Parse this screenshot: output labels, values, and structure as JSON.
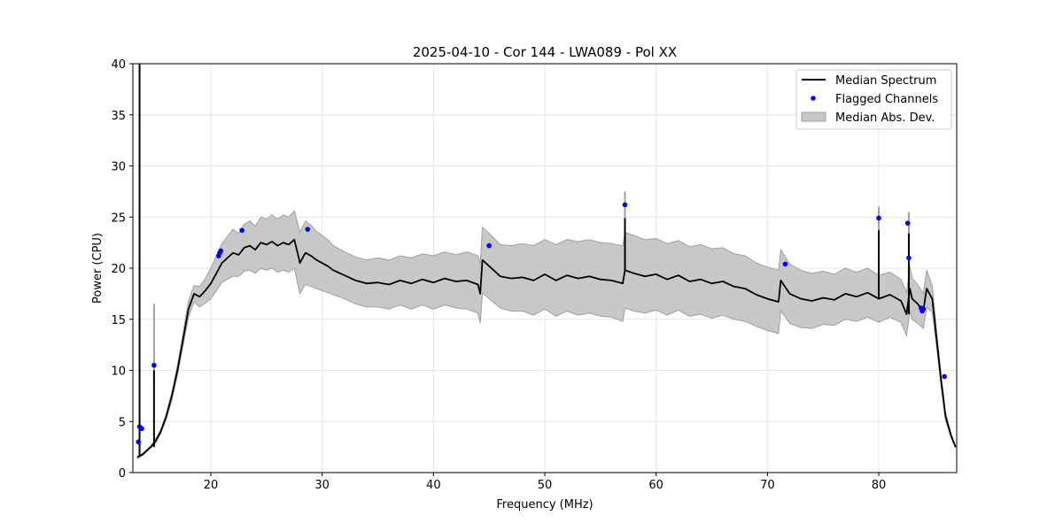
{
  "chart_data": {
    "type": "line",
    "title": "2025-04-10 - Cor 144 - LWA089 - Pol XX",
    "xlabel": "Frequency (MHz)",
    "ylabel": "Power (CPU)",
    "xlim": [
      13,
      87
    ],
    "ylim": [
      0,
      40
    ],
    "xticks": [
      20,
      30,
      40,
      50,
      60,
      70,
      80
    ],
    "yticks": [
      0,
      5,
      10,
      15,
      20,
      25,
      30,
      35,
      40
    ],
    "grid": true,
    "legend": {
      "location": "top-right",
      "entries": [
        "Median Spectrum",
        "Flagged Channels",
        "Median Abs. Dev."
      ]
    },
    "colors": {
      "median_line": "#000000",
      "flagged": "#0000ff",
      "mad_fill": "#c8c8c8",
      "mad_edge": "#a0a0a0",
      "grid": "#e6e6e6"
    },
    "median_spectrum": {
      "x": [
        13.4,
        13.6,
        13.9,
        14.2,
        14.6,
        15.0,
        15.5,
        16.0,
        16.5,
        17.0,
        17.5,
        18.0,
        18.5,
        19.0,
        19.5,
        20.0,
        20.5,
        21.0,
        21.5,
        22.0,
        22.5,
        23.0,
        23.5,
        24.0,
        24.5,
        25.0,
        25.5,
        26.0,
        26.5,
        27.0,
        27.5,
        27.9,
        28.0,
        28.5,
        29.0,
        29.5,
        30.0,
        30.5,
        31.0,
        32.0,
        33.0,
        34.0,
        35.0,
        36.0,
        37.0,
        38.0,
        39.0,
        40.0,
        41.0,
        42.0,
        43.0,
        44.0,
        44.2,
        44.4,
        45.0,
        46.0,
        47.0,
        48.0,
        49.0,
        50.0,
        51.0,
        52.0,
        53.0,
        54.0,
        55.0,
        56.0,
        57.0,
        57.2,
        58.0,
        59.0,
        60.0,
        61.0,
        62.0,
        63.0,
        64.0,
        65.0,
        66.0,
        67.0,
        68.0,
        69.0,
        70.0,
        71.0,
        71.2,
        72.0,
        73.0,
        74.0,
        75.0,
        76.0,
        77.0,
        78.0,
        79.0,
        80.0,
        81.0,
        82.0,
        82.5,
        82.8,
        83.0,
        83.5,
        84.0,
        84.3,
        84.8,
        85.2,
        85.6,
        86.0,
        86.5,
        86.9
      ],
      "y": [
        1.5,
        1.6,
        1.8,
        2.1,
        2.5,
        3.0,
        4.0,
        5.5,
        7.5,
        10.0,
        13.0,
        16.0,
        17.5,
        17.2,
        17.8,
        18.5,
        19.5,
        20.5,
        21.0,
        21.5,
        21.3,
        22.0,
        22.2,
        21.8,
        22.5,
        22.3,
        22.6,
        22.2,
        22.5,
        22.3,
        22.8,
        21.0,
        20.5,
        21.5,
        21.2,
        20.8,
        20.5,
        20.2,
        19.8,
        19.3,
        18.8,
        18.5,
        18.6,
        18.4,
        18.8,
        18.5,
        18.9,
        18.6,
        19.0,
        18.7,
        18.8,
        18.4,
        17.5,
        20.8,
        20.2,
        19.2,
        19.0,
        19.1,
        18.8,
        19.4,
        18.8,
        19.3,
        19.0,
        19.2,
        18.9,
        18.8,
        18.5,
        19.8,
        19.5,
        19.2,
        19.4,
        18.9,
        19.3,
        18.7,
        18.9,
        18.5,
        18.7,
        18.2,
        18.0,
        17.4,
        17.0,
        16.7,
        18.8,
        17.5,
        17.0,
        16.8,
        17.1,
        16.9,
        17.5,
        17.2,
        17.6,
        17.0,
        17.4,
        16.8,
        15.5,
        18.0,
        17.0,
        16.5,
        15.8,
        18.0,
        17.0,
        13.0,
        9.0,
        5.5,
        3.6,
        2.5
      ],
      "spikes": [
        {
          "x": 13.6,
          "y": 40.0
        },
        {
          "x": 14.9,
          "y": 10.0
        },
        {
          "x": 57.2,
          "y": 24.9
        },
        {
          "x": 80.0,
          "y": 23.7
        },
        {
          "x": 82.7,
          "y": 23.4
        },
        {
          "x": 85.9,
          "y": 9.0
        }
      ]
    },
    "median_abs_dev": {
      "x": [
        13.4,
        13.6,
        13.9,
        14.2,
        14.6,
        15.0,
        15.5,
        16.0,
        16.5,
        17.0,
        17.5,
        18.0,
        18.5,
        19.0,
        19.5,
        20.0,
        20.5,
        21.0,
        21.5,
        22.0,
        22.5,
        23.0,
        23.5,
        24.0,
        24.5,
        25.0,
        25.5,
        26.0,
        26.5,
        27.0,
        27.5,
        27.9,
        28.0,
        28.5,
        29.0,
        29.5,
        30.0,
        30.5,
        31.0,
        32.0,
        33.0,
        34.0,
        35.0,
        36.0,
        37.0,
        38.0,
        39.0,
        40.0,
        41.0,
        42.0,
        43.0,
        44.0,
        44.2,
        44.4,
        45.0,
        46.0,
        47.0,
        48.0,
        49.0,
        50.0,
        51.0,
        52.0,
        53.0,
        54.0,
        55.0,
        56.0,
        57.0,
        57.2,
        58.0,
        59.0,
        60.0,
        61.0,
        62.0,
        63.0,
        64.0,
        65.0,
        66.0,
        67.0,
        68.0,
        69.0,
        70.0,
        71.0,
        71.2,
        72.0,
        73.0,
        74.0,
        75.0,
        76.0,
        77.0,
        78.0,
        79.0,
        80.0,
        81.0,
        82.0,
        82.5,
        82.8,
        83.0,
        83.5,
        84.0,
        84.3,
        84.8,
        85.2,
        85.6,
        86.0,
        86.5,
        86.9
      ],
      "upper": [
        1.6,
        1.7,
        1.9,
        2.2,
        2.6,
        3.2,
        4.2,
        5.8,
        7.9,
        10.5,
        13.6,
        16.8,
        18.3,
        18.2,
        19.0,
        20.0,
        21.2,
        22.4,
        23.1,
        23.8,
        23.4,
        24.3,
        24.6,
        24.1,
        25.0,
        24.8,
        25.2,
        24.8,
        25.2,
        25.0,
        25.6,
        24.0,
        23.5,
        24.6,
        24.2,
        23.6,
        23.2,
        22.8,
        22.2,
        21.6,
        21.1,
        20.8,
        21.0,
        20.8,
        21.2,
        21.0,
        21.4,
        21.2,
        21.6,
        21.3,
        21.6,
        21.2,
        20.4,
        24.0,
        23.4,
        22.3,
        22.2,
        22.4,
        22.2,
        22.8,
        22.3,
        22.8,
        22.6,
        22.8,
        22.5,
        22.4,
        22.2,
        23.5,
        23.2,
        22.8,
        22.9,
        22.4,
        22.7,
        22.1,
        22.3,
        21.9,
        22.0,
        21.4,
        21.2,
        20.5,
        20.1,
        19.8,
        21.8,
        20.4,
        19.8,
        19.5,
        19.7,
        19.4,
        20.0,
        19.6,
        20.0,
        19.3,
        19.6,
        18.9,
        17.6,
        20.2,
        19.0,
        18.4,
        17.5,
        19.8,
        18.3,
        13.8,
        9.6,
        5.9,
        3.8,
        2.6
      ],
      "lower": [
        1.4,
        1.5,
        1.7,
        2.0,
        2.4,
        2.8,
        3.8,
        5.2,
        7.1,
        9.5,
        12.4,
        15.2,
        16.7,
        16.2,
        16.6,
        17.0,
        17.8,
        18.6,
        18.9,
        19.2,
        19.2,
        19.7,
        19.8,
        19.5,
        20.0,
        19.8,
        20.0,
        19.6,
        19.8,
        19.6,
        20.0,
        18.0,
        17.5,
        18.4,
        18.2,
        18.0,
        17.8,
        17.6,
        17.4,
        17.0,
        16.5,
        16.2,
        16.2,
        16.0,
        16.4,
        16.0,
        16.4,
        16.0,
        16.4,
        16.1,
        16.0,
        15.6,
        14.6,
        17.6,
        17.0,
        16.1,
        15.8,
        15.8,
        15.4,
        16.0,
        15.3,
        15.8,
        15.4,
        15.6,
        15.3,
        15.2,
        14.8,
        16.1,
        15.8,
        15.6,
        15.9,
        15.4,
        15.9,
        15.3,
        15.5,
        15.1,
        15.4,
        15.0,
        14.8,
        14.3,
        13.9,
        13.6,
        15.8,
        14.6,
        14.2,
        14.1,
        14.5,
        14.4,
        15.0,
        14.8,
        15.2,
        14.7,
        15.2,
        14.7,
        13.4,
        15.8,
        15.0,
        14.6,
        14.1,
        16.2,
        15.7,
        12.2,
        8.4,
        5.1,
        3.4,
        2.4
      ],
      "spikes": [
        {
          "x": 14.9,
          "upper": 16.5,
          "lower": 9.0
        },
        {
          "x": 57.2,
          "upper": 27.5,
          "lower": 22.5
        },
        {
          "x": 80.0,
          "upper": 26.0,
          "lower": 21.5
        },
        {
          "x": 82.7,
          "upper": 25.5,
          "lower": 21.0
        }
      ]
    },
    "flagged_channels": {
      "x": [
        13.5,
        13.6,
        13.8,
        14.9,
        20.7,
        20.8,
        20.9,
        22.8,
        28.7,
        45.0,
        57.2,
        71.6,
        80.0,
        82.6,
        82.7,
        83.8,
        83.9,
        84.0,
        85.9
      ],
      "y": [
        3.0,
        4.5,
        4.3,
        10.5,
        21.2,
        21.5,
        21.7,
        23.7,
        23.8,
        22.2,
        26.2,
        20.4,
        24.9,
        24.4,
        21.0,
        16.1,
        15.8,
        16.0,
        9.4
      ]
    }
  }
}
